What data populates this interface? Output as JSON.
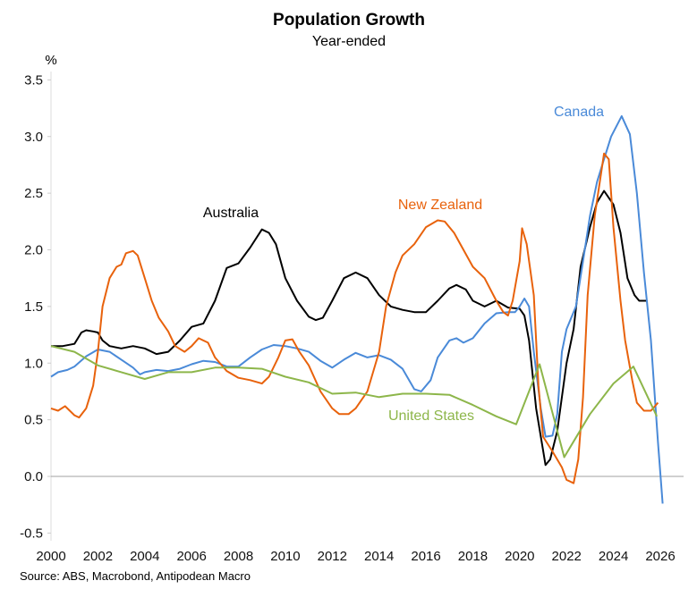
{
  "chart_data": {
    "type": "line",
    "title": "Population Growth",
    "subtitle": "Year-ended",
    "ylabel": "%",
    "source": "Source: ABS, Macrobond, Antipodean Macro",
    "xlim": [
      2000,
      2026.6
    ],
    "ylim": [
      -0.5,
      3.5
    ],
    "xticks": [
      "2000",
      "2002",
      "2004",
      "2006",
      "2008",
      "2010",
      "2012",
      "2014",
      "2016",
      "2018",
      "2020",
      "2022",
      "2024",
      "2026"
    ],
    "yticks": [
      "3.5",
      "3.0",
      "2.5",
      "2.0",
      "1.5",
      "1.0",
      "0.5",
      "0.0",
      "-0.5"
    ],
    "grid": false,
    "zero_line": true,
    "legend": "inline labels",
    "series": [
      {
        "name": "Australia",
        "color": "#000000",
        "points": [
          [
            2000,
            1.15
          ],
          [
            2000.5,
            1.15
          ],
          [
            2001,
            1.17
          ],
          [
            2001.3,
            1.27
          ],
          [
            2001.5,
            1.29
          ],
          [
            2001.8,
            1.28
          ],
          [
            2002,
            1.27
          ],
          [
            2002.2,
            1.2
          ],
          [
            2002.5,
            1.15
          ],
          [
            2003,
            1.13
          ],
          [
            2003.5,
            1.15
          ],
          [
            2004,
            1.13
          ],
          [
            2004.5,
            1.08
          ],
          [
            2005,
            1.1
          ],
          [
            2005.5,
            1.2
          ],
          [
            2006,
            1.32
          ],
          [
            2006.5,
            1.35
          ],
          [
            2007,
            1.55
          ],
          [
            2007.5,
            1.84
          ],
          [
            2008,
            1.88
          ],
          [
            2008.5,
            2.02
          ],
          [
            2009,
            2.18
          ],
          [
            2009.3,
            2.15
          ],
          [
            2009.6,
            2.05
          ],
          [
            2010,
            1.75
          ],
          [
            2010.5,
            1.55
          ],
          [
            2011,
            1.41
          ],
          [
            2011.3,
            1.38
          ],
          [
            2011.6,
            1.4
          ],
          [
            2012,
            1.55
          ],
          [
            2012.5,
            1.75
          ],
          [
            2013,
            1.8
          ],
          [
            2013.5,
            1.75
          ],
          [
            2014,
            1.6
          ],
          [
            2014.5,
            1.5
          ],
          [
            2015,
            1.47
          ],
          [
            2015.5,
            1.45
          ],
          [
            2016,
            1.45
          ],
          [
            2016.5,
            1.55
          ],
          [
            2017,
            1.66
          ],
          [
            2017.3,
            1.69
          ],
          [
            2017.7,
            1.65
          ],
          [
            2018,
            1.55
          ],
          [
            2018.5,
            1.5
          ],
          [
            2019,
            1.55
          ],
          [
            2019.5,
            1.49
          ],
          [
            2020,
            1.48
          ],
          [
            2020.2,
            1.42
          ],
          [
            2020.4,
            1.2
          ],
          [
            2020.7,
            0.6
          ],
          [
            2021.1,
            0.1
          ],
          [
            2021.3,
            0.15
          ],
          [
            2021.6,
            0.4
          ],
          [
            2022,
            1.0
          ],
          [
            2022.3,
            1.3
          ],
          [
            2022.6,
            1.85
          ],
          [
            2023,
            2.2
          ],
          [
            2023.3,
            2.42
          ],
          [
            2023.6,
            2.52
          ],
          [
            2024,
            2.4
          ],
          [
            2024.3,
            2.15
          ],
          [
            2024.6,
            1.75
          ],
          [
            2024.9,
            1.6
          ],
          [
            2025.1,
            1.55
          ],
          [
            2025.4,
            1.55
          ]
        ]
      },
      {
        "name": "Canada",
        "color": "#4a8ad8",
        "points": [
          [
            2000,
            0.88
          ],
          [
            2000.3,
            0.92
          ],
          [
            2000.7,
            0.94
          ],
          [
            2001,
            0.97
          ],
          [
            2001.5,
            1.06
          ],
          [
            2002,
            1.12
          ],
          [
            2002.5,
            1.1
          ],
          [
            2003,
            1.03
          ],
          [
            2003.5,
            0.96
          ],
          [
            2003.8,
            0.9
          ],
          [
            2004,
            0.92
          ],
          [
            2004.5,
            0.94
          ],
          [
            2005,
            0.93
          ],
          [
            2005.5,
            0.95
          ],
          [
            2006,
            0.99
          ],
          [
            2006.5,
            1.02
          ],
          [
            2007,
            1.01
          ],
          [
            2007.5,
            0.97
          ],
          [
            2008,
            0.97
          ],
          [
            2008.5,
            1.05
          ],
          [
            2009,
            1.12
          ],
          [
            2009.5,
            1.16
          ],
          [
            2010,
            1.15
          ],
          [
            2010.5,
            1.13
          ],
          [
            2011,
            1.1
          ],
          [
            2011.5,
            1.02
          ],
          [
            2012,
            0.96
          ],
          [
            2012.5,
            1.03
          ],
          [
            2013,
            1.09
          ],
          [
            2013.5,
            1.05
          ],
          [
            2014,
            1.07
          ],
          [
            2014.5,
            1.03
          ],
          [
            2015,
            0.95
          ],
          [
            2015.5,
            0.77
          ],
          [
            2015.8,
            0.75
          ],
          [
            2016.2,
            0.85
          ],
          [
            2016.5,
            1.05
          ],
          [
            2017,
            1.2
          ],
          [
            2017.3,
            1.22
          ],
          [
            2017.6,
            1.18
          ],
          [
            2018,
            1.22
          ],
          [
            2018.5,
            1.35
          ],
          [
            2019,
            1.44
          ],
          [
            2019.5,
            1.45
          ],
          [
            2019.8,
            1.45
          ],
          [
            2020,
            1.5
          ],
          [
            2020.2,
            1.57
          ],
          [
            2020.4,
            1.5
          ],
          [
            2020.6,
            1.1
          ],
          [
            2020.9,
            0.6
          ],
          [
            2021.1,
            0.35
          ],
          [
            2021.4,
            0.36
          ],
          [
            2021.6,
            0.55
          ],
          [
            2021.8,
            1.1
          ],
          [
            2022,
            1.3
          ],
          [
            2022.4,
            1.5
          ],
          [
            2022.7,
            1.9
          ],
          [
            2023,
            2.3
          ],
          [
            2023.3,
            2.6
          ],
          [
            2023.6,
            2.8
          ],
          [
            2023.9,
            3.0
          ],
          [
            2024.35,
            3.18
          ],
          [
            2024.7,
            3.02
          ],
          [
            2025,
            2.5
          ],
          [
            2025.3,
            1.8
          ],
          [
            2025.6,
            1.2
          ],
          [
            2025.9,
            0.3
          ],
          [
            2026.1,
            -0.24
          ]
        ]
      },
      {
        "name": "New Zealand",
        "color": "#e8620c",
        "points": [
          [
            2000,
            0.6
          ],
          [
            2000.3,
            0.58
          ],
          [
            2000.6,
            0.62
          ],
          [
            2001,
            0.54
          ],
          [
            2001.2,
            0.52
          ],
          [
            2001.5,
            0.6
          ],
          [
            2001.8,
            0.8
          ],
          [
            2002,
            1.1
          ],
          [
            2002.2,
            1.5
          ],
          [
            2002.5,
            1.75
          ],
          [
            2002.8,
            1.85
          ],
          [
            2003,
            1.87
          ],
          [
            2003.2,
            1.97
          ],
          [
            2003.5,
            1.99
          ],
          [
            2003.7,
            1.95
          ],
          [
            2004,
            1.75
          ],
          [
            2004.3,
            1.55
          ],
          [
            2004.6,
            1.4
          ],
          [
            2005,
            1.28
          ],
          [
            2005.3,
            1.15
          ],
          [
            2005.7,
            1.1
          ],
          [
            2006,
            1.15
          ],
          [
            2006.3,
            1.22
          ],
          [
            2006.7,
            1.18
          ],
          [
            2007,
            1.05
          ],
          [
            2007.5,
            0.93
          ],
          [
            2008,
            0.87
          ],
          [
            2008.5,
            0.85
          ],
          [
            2009,
            0.82
          ],
          [
            2009.3,
            0.88
          ],
          [
            2009.7,
            1.05
          ],
          [
            2010,
            1.2
          ],
          [
            2010.3,
            1.21
          ],
          [
            2010.6,
            1.1
          ],
          [
            2011,
            0.98
          ],
          [
            2011.5,
            0.75
          ],
          [
            2012,
            0.6
          ],
          [
            2012.3,
            0.55
          ],
          [
            2012.7,
            0.55
          ],
          [
            2013,
            0.6
          ],
          [
            2013.5,
            0.75
          ],
          [
            2014,
            1.1
          ],
          [
            2014.3,
            1.5
          ],
          [
            2014.7,
            1.8
          ],
          [
            2015,
            1.95
          ],
          [
            2015.5,
            2.05
          ],
          [
            2016,
            2.2
          ],
          [
            2016.5,
            2.26
          ],
          [
            2016.8,
            2.25
          ],
          [
            2017.2,
            2.15
          ],
          [
            2017.6,
            2.0
          ],
          [
            2018,
            1.85
          ],
          [
            2018.5,
            1.75
          ],
          [
            2019,
            1.55
          ],
          [
            2019.3,
            1.45
          ],
          [
            2019.5,
            1.42
          ],
          [
            2019.7,
            1.55
          ],
          [
            2020,
            1.9
          ],
          [
            2020.1,
            2.19
          ],
          [
            2020.3,
            2.05
          ],
          [
            2020.6,
            1.6
          ],
          [
            2020.8,
            0.8
          ],
          [
            2021,
            0.35
          ],
          [
            2021.4,
            0.22
          ],
          [
            2021.8,
            0.08
          ],
          [
            2022,
            -0.03
          ],
          [
            2022.3,
            -0.06
          ],
          [
            2022.5,
            0.15
          ],
          [
            2022.7,
            0.7
          ],
          [
            2022.9,
            1.6
          ],
          [
            2023.2,
            2.3
          ],
          [
            2023.6,
            2.85
          ],
          [
            2023.8,
            2.8
          ],
          [
            2024,
            2.2
          ],
          [
            2024.3,
            1.55
          ],
          [
            2024.5,
            1.2
          ],
          [
            2024.8,
            0.85
          ],
          [
            2025,
            0.65
          ],
          [
            2025.3,
            0.58
          ],
          [
            2025.6,
            0.58
          ],
          [
            2025.9,
            0.65
          ]
        ]
      },
      {
        "name": "United States",
        "color": "#8db64a",
        "points": [
          [
            2000,
            1.15
          ],
          [
            2001,
            1.1
          ],
          [
            2002,
            0.98
          ],
          [
            2003,
            0.92
          ],
          [
            2004,
            0.86
          ],
          [
            2005,
            0.92
          ],
          [
            2006,
            0.92
          ],
          [
            2007,
            0.96
          ],
          [
            2008,
            0.96
          ],
          [
            2009,
            0.95
          ],
          [
            2010,
            0.88
          ],
          [
            2011,
            0.83
          ],
          [
            2012,
            0.73
          ],
          [
            2013,
            0.74
          ],
          [
            2014,
            0.7
          ],
          [
            2015,
            0.73
          ],
          [
            2016,
            0.73
          ],
          [
            2017,
            0.72
          ],
          [
            2018,
            0.63
          ],
          [
            2019,
            0.53
          ],
          [
            2019.85,
            0.46
          ],
          [
            2020.85,
            0.99
          ],
          [
            2021.9,
            0.17
          ],
          [
            2023,
            0.55
          ],
          [
            2024,
            0.82
          ],
          [
            2024.85,
            0.97
          ],
          [
            2025.85,
            0.53
          ]
        ]
      }
    ]
  }
}
